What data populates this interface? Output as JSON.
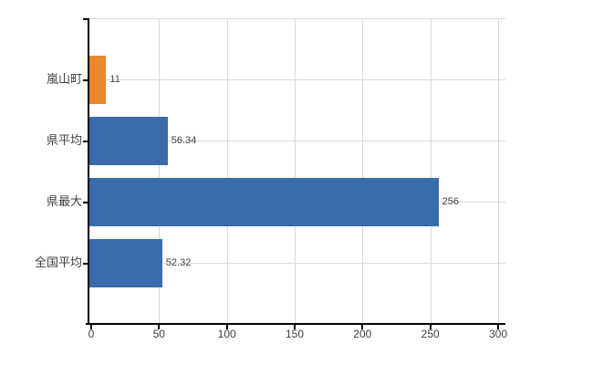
{
  "chart_data": {
    "type": "bar",
    "orientation": "horizontal",
    "title": "",
    "xlabel": "",
    "ylabel": "",
    "categories": [
      "嵐山町",
      "県平均",
      "県最大",
      "全国平均"
    ],
    "values": [
      11,
      56.34,
      256,
      52.32
    ],
    "value_labels": [
      "11",
      "56.34",
      "256",
      "52.32"
    ],
    "bar_colors": [
      "#e9872e",
      "#3a6bab",
      "#3a6bab",
      "#3a6bab"
    ],
    "xlim": [
      0,
      300
    ],
    "x_ticks": [
      "0",
      "50",
      "100",
      "150",
      "200",
      "250",
      "300"
    ],
    "x_tick_values": [
      0,
      50,
      100,
      150,
      200,
      250,
      300
    ],
    "grid": true,
    "legend": false,
    "colors": {
      "highlight_bar": "#e9872e",
      "default_bar": "#3a6bab",
      "grid": "#d9d9d9",
      "axis": "#000000",
      "text": "#3f3f3f",
      "background": "#ffffff"
    }
  }
}
